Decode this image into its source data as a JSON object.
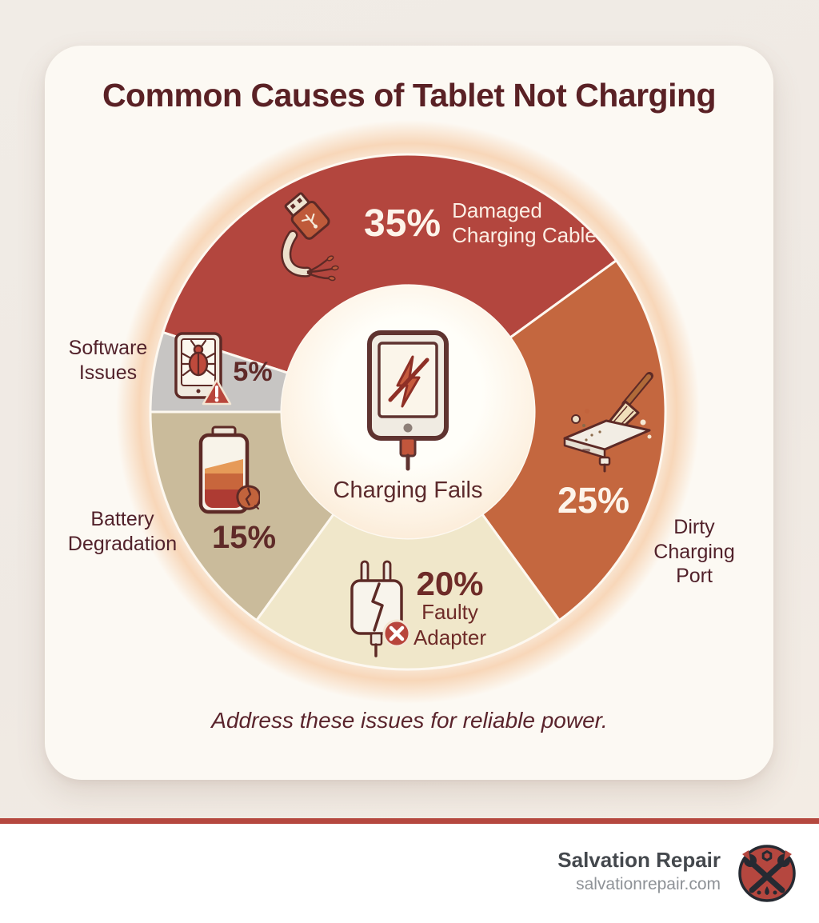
{
  "title": "Common Causes of Tablet Not Charging",
  "center": {
    "label": "Charging Fails",
    "icon": "tablet-not-charging-icon"
  },
  "footnote": "Address these issues for reliable power.",
  "footer": {
    "brand": "Salvation Repair",
    "website": "salvationrepair.com",
    "logo_icon": "crossed-tools-logo"
  },
  "colors": {
    "title_text": "#5a2125",
    "dark_text": "#5f2a28",
    "light_text": "#fdf4ea",
    "divider": "#b5483f",
    "card_bg": "#fcf9f3",
    "page_bg": "#efe9e3",
    "separator_stroke": "#fdf8f0"
  },
  "chart_data": {
    "type": "pie",
    "subtype": "donut",
    "title": "Common Causes of Tablet Not Charging",
    "center_label": "Charging Fails",
    "start_angle_deg": -72,
    "inner_radius_px": 158,
    "outer_radius_px": 322,
    "legend_position": "on-segment and outside labels",
    "segments": [
      {
        "label": "Damaged Charging Cable",
        "lines": [
          "Damaged",
          "Charging Cable"
        ],
        "value": 35,
        "pct_label": "35%",
        "color": "#b3463e",
        "text_color": "#fdf4ea",
        "icon": "damaged-cable-icon"
      },
      {
        "label": "Dirty Charging Port",
        "lines": [
          "Dirty",
          "Charging",
          "Port"
        ],
        "value": 25,
        "pct_label": "25%",
        "color": "#c4673f",
        "text_color": "#fdf4ea",
        "icon": "dirty-port-brush-icon"
      },
      {
        "label": "Faulty Adapter",
        "lines": [
          "Faulty",
          "Adapter"
        ],
        "value": 20,
        "pct_label": "20%",
        "color": "#f0e7ca",
        "text_color": "#6e2b28",
        "icon": "faulty-adapter-icon"
      },
      {
        "label": "Battery Degradation",
        "lines": [
          "Battery",
          "Degradation"
        ],
        "value": 15,
        "pct_label": "15%",
        "color": "#cabb9b",
        "text_color": "#5f2a28",
        "icon": "degraded-battery-icon"
      },
      {
        "label": "Software Issues",
        "lines": [
          "Software",
          "Issues"
        ],
        "value": 5,
        "pct_label": "5%",
        "color": "#c7c5c3",
        "text_color": "#5f2a28",
        "icon": "software-bug-icon"
      }
    ]
  }
}
